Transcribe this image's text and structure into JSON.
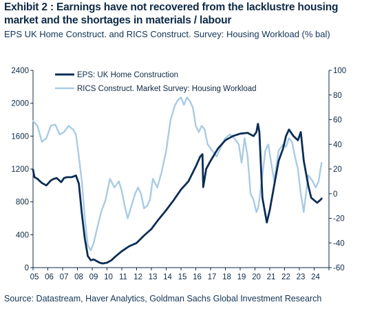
{
  "header": {
    "title": "Exhibit 2 : Earnings have not recovered from the lacklustre housing market and the shortages in materials / labour",
    "subtitle": "EPS UK Home Construct. and RICS Construct. Survey: Housing Workload (% bal)"
  },
  "footer": {
    "source": "Source: Datastream, Haver Analytics, Goldman Sachs Global Investment Research"
  },
  "colors": {
    "eps": "#0b2d55",
    "rics": "#a9cbe3",
    "axis": "#0e2a47"
  },
  "chart_data": {
    "type": "line",
    "title": "",
    "xlabel": "",
    "x_ticks": [
      "05",
      "06",
      "07",
      "08",
      "09",
      "10",
      "11",
      "12",
      "13",
      "14",
      "15",
      "16",
      "17",
      "18",
      "19",
      "20",
      "21",
      "22",
      "23",
      "24"
    ],
    "xlim": [
      2005.0,
      2025.0
    ],
    "y_left": {
      "lim": [
        0,
        2400
      ],
      "ticks": [
        "0",
        "400",
        "800",
        "1200",
        "1600",
        "2000",
        "2400"
      ]
    },
    "y_right": {
      "lim": [
        -60,
        100
      ],
      "ticks": [
        "-60",
        "-40",
        "-20",
        "0",
        "20",
        "40",
        "60",
        "80",
        "100"
      ]
    },
    "grid": false,
    "legend_position": "top-left",
    "series": [
      {
        "name": "EPS: UK Home Construction",
        "axis": "left",
        "x": [
          2005.0,
          2005.1,
          2005.3,
          2005.6,
          2005.9,
          2006.2,
          2006.4,
          2006.6,
          2006.9,
          2007.1,
          2007.3,
          2007.6,
          2007.9,
          2008.1,
          2008.3,
          2008.5,
          2008.7,
          2008.9,
          2009.1,
          2009.3,
          2009.5,
          2009.7,
          2010.0,
          2010.3,
          2010.6,
          2011.0,
          2011.5,
          2012.0,
          2012.5,
          2013.0,
          2013.5,
          2014.0,
          2014.5,
          2015.0,
          2015.5,
          2016.0,
          2016.3,
          2016.45,
          2016.5,
          2016.7,
          2017.0,
          2017.5,
          2018.0,
          2018.5,
          2019.0,
          2019.5,
          2019.9,
          2020.1,
          2020.2,
          2020.3,
          2020.5,
          2020.8,
          2021.0,
          2021.3,
          2021.6,
          2021.9,
          2022.1,
          2022.3,
          2022.6,
          2022.9,
          2023.1,
          2023.3,
          2023.6,
          2023.8,
          2024.0,
          2024.2,
          2024.4,
          2024.5
        ],
        "values": [
          1190,
          1100,
          1080,
          1030,
          1000,
          1060,
          1080,
          1090,
          1040,
          1090,
          1100,
          1100,
          1120,
          1020,
          660,
          350,
          140,
          90,
          100,
          80,
          60,
          50,
          60,
          90,
          140,
          200,
          260,
          300,
          390,
          470,
          590,
          700,
          820,
          950,
          1050,
          1230,
          1350,
          1380,
          980,
          1200,
          1300,
          1450,
          1550,
          1600,
          1630,
          1640,
          1600,
          1650,
          1750,
          1650,
          850,
          550,
          700,
          1000,
          1300,
          1450,
          1600,
          1680,
          1600,
          1550,
          1650,
          1300,
          1000,
          850,
          820,
          790,
          820,
          840
        ]
      },
      {
        "name": "RICS Construct. Market Survey: Housing Workload",
        "axis": "right",
        "x": [
          2005.0,
          2005.3,
          2005.6,
          2005.9,
          2006.2,
          2006.5,
          2006.8,
          2007.1,
          2007.4,
          2007.7,
          2007.9,
          2008.1,
          2008.3,
          2008.5,
          2008.7,
          2008.9,
          2009.1,
          2009.3,
          2009.6,
          2009.9,
          2010.2,
          2010.5,
          2010.8,
          2011.0,
          2011.2,
          2011.4,
          2011.6,
          2011.9,
          2012.1,
          2012.3,
          2012.5,
          2012.7,
          2012.9,
          2013.1,
          2013.4,
          2013.7,
          2014.0,
          2014.3,
          2014.6,
          2014.8,
          2015.0,
          2015.2,
          2015.4,
          2015.6,
          2015.8,
          2016.0,
          2016.2,
          2016.4,
          2016.6,
          2016.8,
          2017.1,
          2017.4,
          2017.7,
          2018.0,
          2018.3,
          2018.6,
          2018.9,
          2019.1,
          2019.3,
          2019.5,
          2019.7,
          2019.9,
          2020.1,
          2020.2,
          2020.3,
          2020.5,
          2020.7,
          2020.9,
          2021.1,
          2021.3,
          2021.6,
          2021.9,
          2022.1,
          2022.3,
          2022.5,
          2022.7,
          2022.9,
          2023.1,
          2023.3,
          2023.6,
          2023.9,
          2024.1,
          2024.3,
          2024.5
        ],
        "values": [
          59,
          55,
          42,
          45,
          55,
          56,
          48,
          50,
          55,
          52,
          48,
          30,
          10,
          -20,
          -42,
          -46,
          -40,
          -30,
          -15,
          -5,
          12,
          5,
          10,
          2,
          -10,
          -20,
          -12,
          0,
          5,
          0,
          -12,
          -10,
          -5,
          12,
          5,
          18,
          35,
          60,
          72,
          76,
          78,
          72,
          78,
          75,
          70,
          55,
          50,
          55,
          52,
          40,
          35,
          30,
          38,
          45,
          48,
          45,
          40,
          25,
          45,
          30,
          0,
          -5,
          -15,
          -12,
          -5,
          15,
          35,
          40,
          25,
          10,
          35,
          40,
          38,
          45,
          42,
          30,
          20,
          0,
          -15,
          15,
          10,
          5,
          10,
          25
        ]
      }
    ]
  }
}
